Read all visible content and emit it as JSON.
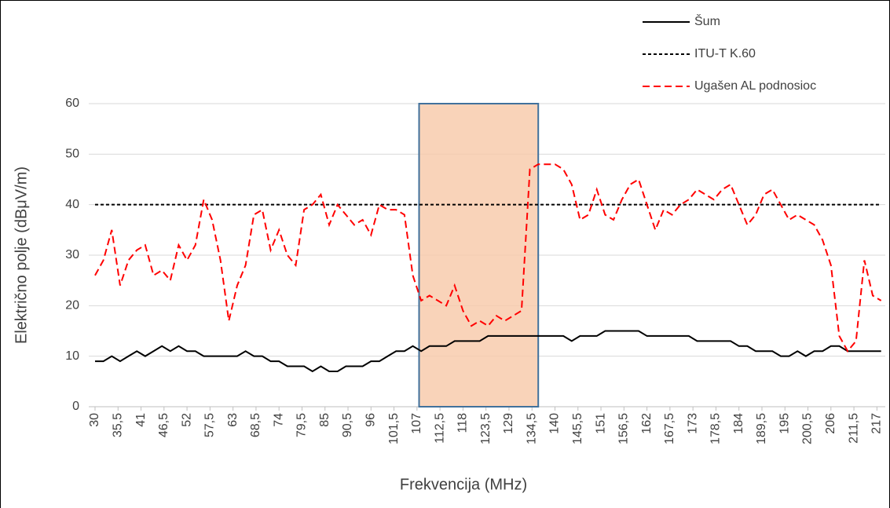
{
  "chart_data": {
    "type": "line",
    "x_label": "Frekvencija (MHz)",
    "y_label": "Električno polje (dBμV/m)",
    "x": [
      30,
      32,
      34,
      36,
      38,
      40,
      42,
      44,
      46,
      48,
      50,
      52,
      54,
      56,
      58,
      60,
      62,
      64,
      66,
      68,
      70,
      72,
      74,
      76,
      78,
      80,
      82,
      84,
      86,
      88,
      90,
      92,
      94,
      96,
      98,
      100,
      102,
      104,
      106,
      108,
      110,
      112,
      114,
      116,
      118,
      120,
      122,
      124,
      126,
      128,
      130,
      132,
      134,
      136,
      138,
      140,
      142,
      144,
      146,
      148,
      150,
      152,
      154,
      156,
      158,
      160,
      162,
      164,
      166,
      168,
      170,
      172,
      174,
      176,
      178,
      180,
      182,
      184,
      186,
      188,
      190,
      192,
      194,
      196,
      198,
      200,
      202,
      204,
      206,
      208,
      210,
      212,
      214,
      216,
      218
    ],
    "series": [
      {
        "name": "Šum",
        "color": "#000000",
        "dash": "solid",
        "values": [
          9,
          9,
          10,
          9,
          10,
          11,
          10,
          11,
          12,
          11,
          12,
          11,
          11,
          10,
          10,
          10,
          10,
          10,
          11,
          10,
          10,
          9,
          9,
          8,
          8,
          8,
          7,
          8,
          7,
          7,
          8,
          8,
          8,
          9,
          9,
          10,
          11,
          11,
          12,
          11,
          12,
          12,
          12,
          13,
          13,
          13,
          13,
          14,
          14,
          14,
          14,
          14,
          14,
          14,
          14,
          14,
          14,
          13,
          14,
          14,
          14,
          15,
          15,
          15,
          15,
          15,
          14,
          14,
          14,
          14,
          14,
          14,
          13,
          13,
          13,
          13,
          13,
          12,
          12,
          11,
          11,
          11,
          10,
          10,
          11,
          10,
          11,
          11,
          12,
          12,
          11,
          11,
          11,
          11,
          11
        ]
      },
      {
        "name": "ITU-T K.60",
        "color": "#000000",
        "dash": "short",
        "x": [
          30,
          218
        ],
        "values": [
          40,
          40
        ]
      },
      {
        "name": "Ugašen AL podnosioc",
        "color": "#ff0000",
        "dash": "long",
        "values": [
          26,
          29,
          35,
          24,
          29,
          31,
          32,
          26,
          27,
          25,
          32,
          29,
          32,
          41,
          37,
          29,
          17,
          24,
          28,
          38,
          39,
          31,
          35,
          30,
          28,
          39,
          40,
          42,
          36,
          40,
          38,
          36,
          37,
          34,
          40,
          39,
          39,
          38,
          26,
          21,
          22,
          21,
          20,
          24,
          19,
          16,
          17,
          16,
          18,
          17,
          18,
          19,
          47,
          48,
          48,
          48,
          47,
          44,
          37,
          38,
          43,
          38,
          37,
          41,
          44,
          45,
          40,
          35,
          39,
          38,
          40,
          41,
          43,
          42,
          41,
          43,
          44,
          40,
          36,
          38,
          42,
          43,
          40,
          37,
          38,
          37,
          36,
          33,
          28,
          14,
          11,
          13,
          29,
          22,
          21
        ]
      }
    ],
    "highlight": {
      "x": [
        107.5,
        136
      ],
      "fill": "#f8cbad",
      "stroke": "#41719c"
    },
    "xlim": [
      28.5,
      219
    ],
    "xticks": [
      30,
      {
        "value": 35.5,
        "label": "35,5"
      },
      41,
      {
        "value": 46.5,
        "label": "46,5"
      },
      52,
      {
        "value": 57.5,
        "label": "57,5"
      },
      63,
      {
        "value": 68.5,
        "label": "68,5"
      },
      74,
      {
        "value": 79.5,
        "label": "79,5"
      },
      85,
      {
        "value": 90.5,
        "label": "90,5"
      },
      96,
      {
        "value": 101.5,
        "label": "101,5"
      },
      107,
      {
        "value": 112.5,
        "label": "112,5"
      },
      118,
      {
        "value": 123.5,
        "label": "123,5"
      },
      129,
      {
        "value": 134.5,
        "label": "134,5"
      },
      140,
      {
        "value": 145.5,
        "label": "145,5"
      },
      151,
      {
        "value": 156.5,
        "label": "156,5"
      },
      162,
      {
        "value": 167.5,
        "label": "167,5"
      },
      173,
      {
        "value": 178.5,
        "label": "178,5"
      },
      184,
      {
        "value": 189.5,
        "label": "189,5"
      },
      195,
      {
        "value": 200.5,
        "label": "200,5"
      },
      206,
      {
        "value": 211.5,
        "label": "211,5"
      },
      217
    ],
    "ylim": [
      0,
      60
    ],
    "yticks": [
      0,
      10,
      20,
      30,
      40,
      50,
      60
    ],
    "grid": true,
    "legend": "top-right"
  }
}
